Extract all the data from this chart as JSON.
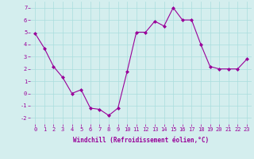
{
  "x": [
    0,
    1,
    2,
    3,
    4,
    5,
    6,
    7,
    8,
    9,
    10,
    11,
    12,
    13,
    14,
    15,
    16,
    17,
    18,
    19,
    20,
    21,
    22,
    23
  ],
  "y": [
    4.9,
    3.7,
    2.2,
    1.3,
    0.0,
    0.3,
    -1.2,
    -1.3,
    -1.8,
    -1.2,
    1.8,
    5.0,
    5.0,
    5.9,
    5.5,
    7.0,
    6.0,
    6.0,
    4.0,
    2.2,
    2.0,
    2.0,
    2.0,
    2.8
  ],
  "line_color": "#990099",
  "marker": "D",
  "marker_size": 2.0,
  "bg_color": "#d4eeee",
  "grid_color": "#aadddd",
  "xlabel": "Windchill (Refroidissement éolien,°C)",
  "xlabel_color": "#990099",
  "tick_color": "#990099",
  "ylim": [
    -2.5,
    7.5
  ],
  "xlim": [
    -0.5,
    23.5
  ],
  "yticks": [
    -2,
    -1,
    0,
    1,
    2,
    3,
    4,
    5,
    6,
    7
  ],
  "xticks": [
    0,
    1,
    2,
    3,
    4,
    5,
    6,
    7,
    8,
    9,
    10,
    11,
    12,
    13,
    14,
    15,
    16,
    17,
    18,
    19,
    20,
    21,
    22,
    23
  ],
  "xtick_labels": [
    "0",
    "1",
    "2",
    "3",
    "4",
    "5",
    "6",
    "7",
    "8",
    "9",
    "10",
    "11",
    "12",
    "13",
    "14",
    "15",
    "16",
    "17",
    "18",
    "19",
    "20",
    "21",
    "22",
    "23"
  ],
  "tick_fontsize": 5.0,
  "xlabel_fontsize": 5.5,
  "linewidth": 0.8
}
